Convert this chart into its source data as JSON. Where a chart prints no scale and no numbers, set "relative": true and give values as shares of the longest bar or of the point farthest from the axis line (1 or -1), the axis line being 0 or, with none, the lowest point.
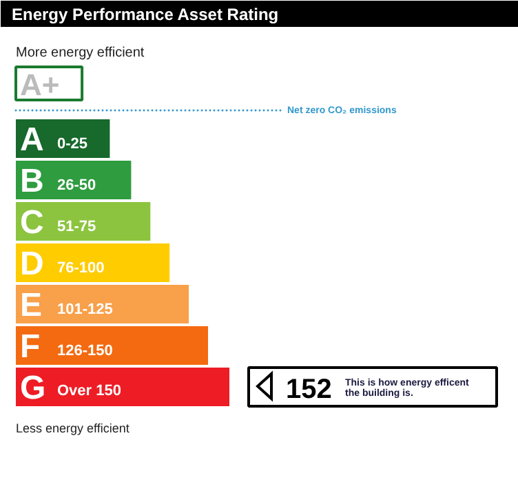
{
  "chart_data": {
    "type": "bar",
    "orientation": "horizontal",
    "relative": true,
    "title": "Energy Performance Asset Rating",
    "subtitle": "More energy efficient",
    "categories": [
      "A+",
      "A 0-25",
      "B 26-50",
      "C 51-75",
      "D 76-100",
      "E 101-125",
      "F 126-150",
      "G Over 150"
    ],
    "values": [
      0.31,
      0.44,
      0.54,
      0.63,
      0.72,
      0.81,
      0.9,
      1
    ],
    "colors": [
      "#ffffff",
      "#17692c",
      "#2e9c3f",
      "#8cc43f",
      "#ffcc00",
      "#f9a04a",
      "#f46a10",
      "#ee1c25"
    ],
    "annotations": [
      "Less energy efficient",
      "152",
      "This is how energy efficent the building is.",
      "Net zero CO₂ emissions"
    ],
    "grid": false
  }
}
